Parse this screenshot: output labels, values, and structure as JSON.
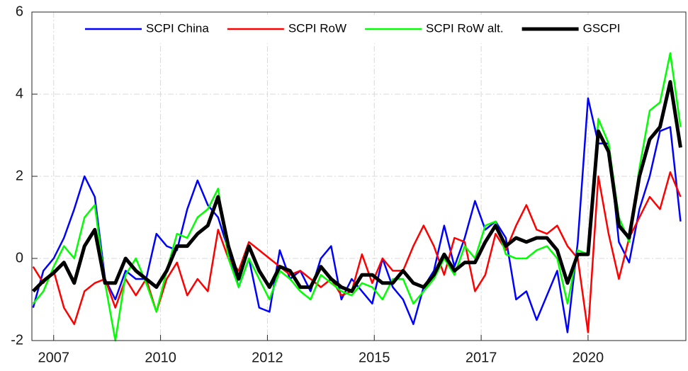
{
  "chart_data": {
    "type": "line",
    "x": [
      2006.5,
      2006.75,
      2007,
      2007.25,
      2007.5,
      2007.75,
      2008,
      2008.25,
      2008.5,
      2008.75,
      2009,
      2009.25,
      2009.5,
      2009.75,
      2010,
      2010.25,
      2010.5,
      2010.75,
      2011,
      2011.25,
      2011.5,
      2011.75,
      2012,
      2012.25,
      2012.5,
      2012.75,
      2013,
      2013.25,
      2013.5,
      2013.75,
      2014,
      2014.25,
      2014.5,
      2014.75,
      2015,
      2015.25,
      2015.5,
      2015.75,
      2016,
      2016.25,
      2016.5,
      2016.75,
      2017,
      2017.25,
      2017.5,
      2017.75,
      2018,
      2018.25,
      2018.5,
      2018.75,
      2019,
      2019.25,
      2019.5,
      2019.75,
      2020,
      2020.25,
      2020.5,
      2020.75,
      2021,
      2021.25,
      2021.5,
      2021.75,
      2022,
      2022.25
    ],
    "series": [
      {
        "name": "SCPI China",
        "color": "#0000ff",
        "width": 2.5,
        "values": [
          -1.2,
          -0.3,
          0.0,
          0.5,
          1.2,
          2.0,
          1.5,
          -0.5,
          -1.0,
          -0.3,
          -0.5,
          -0.5,
          0.6,
          0.3,
          0.2,
          1.2,
          1.9,
          1.3,
          1.0,
          0.2,
          -0.7,
          0.0,
          -1.2,
          -1.3,
          0.2,
          -0.5,
          -0.3,
          -0.8,
          0.0,
          0.3,
          -1.0,
          -0.5,
          -0.8,
          -1.1,
          0.0,
          -0.7,
          -1.0,
          -1.6,
          -0.7,
          -0.3,
          0.8,
          -0.2,
          0.5,
          1.4,
          0.7,
          0.9,
          0.5,
          -1.0,
          -0.8,
          -1.5,
          -0.9,
          -0.3,
          -1.8,
          0.4,
          3.9,
          2.8,
          2.8,
          0.4,
          -0.1,
          1.2,
          2.0,
          3.1,
          3.2,
          0.9
        ]
      },
      {
        "name": "SCPI RoW",
        "color": "#ff0000",
        "width": 2.5,
        "values": [
          -0.2,
          -0.6,
          -0.3,
          -1.2,
          -1.6,
          -0.8,
          -0.6,
          -0.5,
          -1.2,
          -0.5,
          -0.9,
          -0.5,
          -1.3,
          -0.5,
          -0.1,
          -0.9,
          -0.5,
          -0.8,
          0.7,
          0.0,
          -0.3,
          0.4,
          0.2,
          0.0,
          -0.2,
          -0.4,
          -0.3,
          -0.5,
          -0.7,
          -0.5,
          -0.9,
          -0.8,
          0.1,
          -0.6,
          0.0,
          -0.3,
          -0.3,
          0.3,
          0.8,
          0.3,
          -0.4,
          0.5,
          0.4,
          -0.8,
          -0.4,
          0.6,
          0.2,
          0.8,
          1.3,
          0.7,
          0.6,
          0.8,
          0.3,
          0.0,
          -1.8,
          2.0,
          0.6,
          -0.5,
          0.5,
          1.0,
          1.5,
          1.2,
          2.1,
          1.5
        ]
      },
      {
        "name": "SCPI RoW alt.",
        "color": "#00ff00",
        "width": 2.5,
        "values": [
          -1.1,
          -0.8,
          -0.2,
          0.3,
          0.0,
          1.0,
          1.3,
          -0.6,
          -2.0,
          -0.4,
          0.0,
          -0.6,
          -1.3,
          -0.3,
          0.6,
          0.5,
          1.0,
          1.2,
          1.7,
          0.0,
          -0.7,
          0.0,
          -0.5,
          -1.0,
          -0.3,
          -0.5,
          -0.8,
          -1.0,
          -0.4,
          -0.6,
          -0.8,
          -0.9,
          -0.6,
          -0.7,
          -1.0,
          -0.5,
          -0.5,
          -1.1,
          -0.8,
          -0.5,
          0.0,
          -0.4,
          0.3,
          0.0,
          0.8,
          0.9,
          0.1,
          0.0,
          0.0,
          0.2,
          0.3,
          0.0,
          -1.1,
          0.2,
          0.1,
          3.4,
          2.8,
          1.0,
          0.4,
          2.2,
          3.6,
          3.8,
          5.0,
          3.2
        ]
      },
      {
        "name": "GSCPI",
        "color": "#000000",
        "width": 5,
        "values": [
          -0.8,
          -0.55,
          -0.35,
          -0.1,
          -0.6,
          0.3,
          0.7,
          -0.6,
          -0.6,
          0.0,
          -0.3,
          -0.5,
          -0.7,
          -0.3,
          0.3,
          0.3,
          0.6,
          0.8,
          1.5,
          0.3,
          -0.5,
          0.3,
          -0.3,
          -0.7,
          -0.2,
          -0.3,
          -0.7,
          -0.7,
          -0.2,
          -0.5,
          -0.7,
          -0.8,
          -0.4,
          -0.4,
          -0.6,
          -0.6,
          -0.3,
          -0.6,
          -0.7,
          -0.4,
          0.1,
          -0.3,
          -0.1,
          -0.1,
          0.4,
          0.8,
          0.3,
          0.5,
          0.4,
          0.5,
          0.5,
          0.2,
          -0.6,
          0.1,
          0.1,
          3.1,
          2.6,
          0.8,
          0.5,
          2.0,
          2.9,
          3.2,
          4.3,
          2.7
        ]
      }
    ],
    "xlim": [
      2006.47,
      2022.38
    ],
    "xticks": [
      2007,
      {
        "value": 2009.6,
        "label": "2010"
      },
      {
        "value": 2012.2,
        "label": "2012"
      },
      {
        "value": 2014.8,
        "label": "2015"
      },
      {
        "value": 2017.4,
        "label": "2017"
      },
      2020
    ],
    "ylim": [
      -2,
      6
    ],
    "yticks": [
      -2,
      0,
      2,
      4,
      6
    ],
    "grid": true,
    "legend": "top"
  }
}
